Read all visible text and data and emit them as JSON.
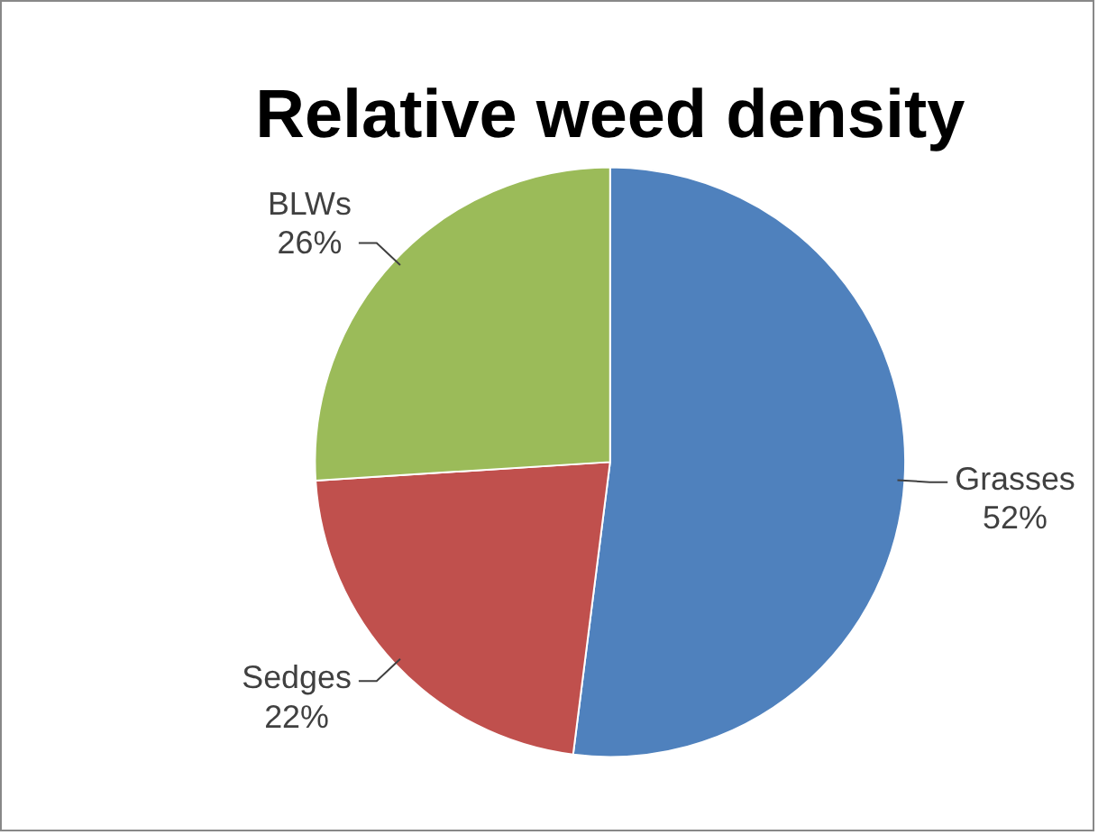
{
  "chart_data": {
    "type": "pie",
    "title": "Relative weed density",
    "categories": [
      "Grasses",
      "Sedges",
      "BLWs"
    ],
    "values": [
      52,
      22,
      26
    ],
    "value_labels": [
      "52%",
      "22%",
      "26%"
    ],
    "colors": [
      "#4f81bd",
      "#c0504d",
      "#9bbb59"
    ],
    "legend": false
  }
}
